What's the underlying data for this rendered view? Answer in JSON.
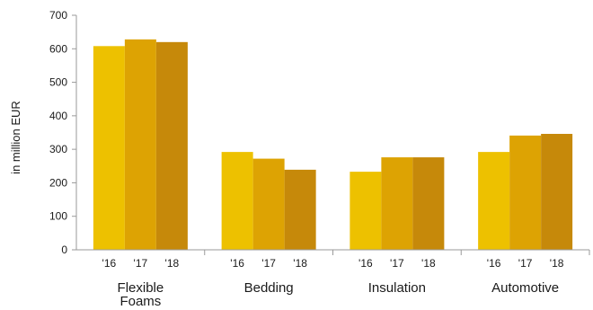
{
  "chart_data": {
    "type": "bar",
    "categories": [
      "Flexible Foams",
      "Bedding",
      "Insulation",
      "Automotive"
    ],
    "category_label_lines": [
      [
        "Flexible",
        "Foams"
      ],
      [
        "Bedding"
      ],
      [
        "Insulation"
      ],
      [
        "Automotive"
      ]
    ],
    "series": [
      {
        "name": "'16",
        "color": "#EDC100",
        "values": [
          608,
          292,
          233,
          292
        ]
      },
      {
        "name": "'17",
        "color": "#DDA303",
        "values": [
          628,
          272,
          276,
          341
        ]
      },
      {
        "name": "'18",
        "color": "#C6890A",
        "values": [
          620,
          239,
          276,
          346
        ]
      }
    ],
    "xlabel": "",
    "ylabel": "in million EUR",
    "ylim": [
      0,
      700
    ],
    "yticks": [
      0,
      100,
      200,
      300,
      400,
      500,
      600,
      700
    ],
    "grid": false,
    "legend": "none"
  }
}
